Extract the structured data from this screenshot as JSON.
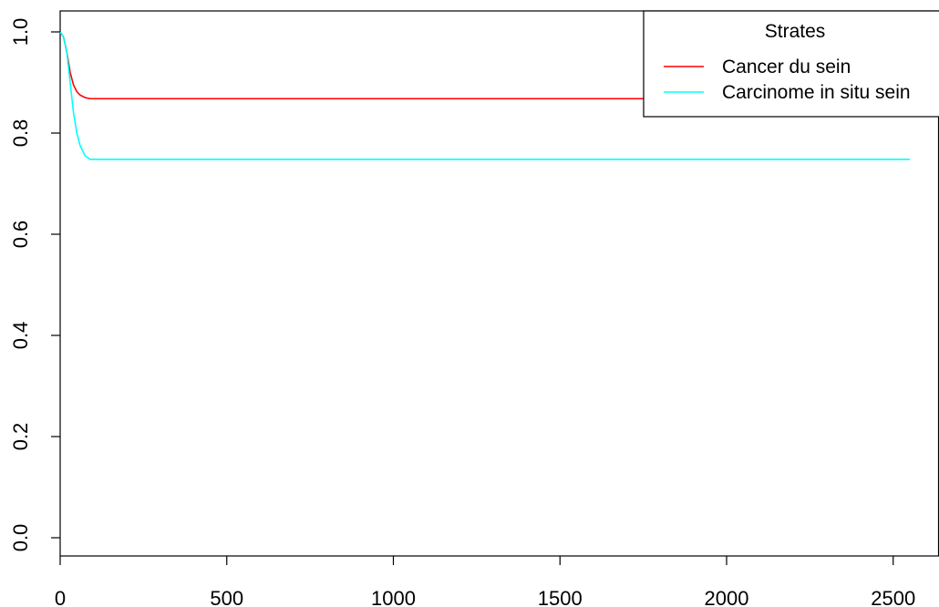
{
  "chart_data": {
    "type": "line",
    "title": "",
    "xlabel": "",
    "ylabel": "",
    "xlim": [
      0,
      2600
    ],
    "ylim": [
      0,
      1.0
    ],
    "x_ticks": [
      0,
      500,
      1000,
      1500,
      2000,
      2500
    ],
    "y_ticks": [
      0.0,
      0.2,
      0.4,
      0.6,
      0.8,
      1.0
    ],
    "x_tick_labels": [
      "0",
      "500",
      "1000",
      "1500",
      "2000",
      "2500"
    ],
    "y_tick_labels": [
      "0.0",
      "0.2",
      "0.4",
      "0.6",
      "0.8",
      "1.0"
    ],
    "grid": false,
    "legend": {
      "title": "Strates",
      "placement": "top-right"
    },
    "series": [
      {
        "name": "Cancer du sein",
        "color": "#ff0000",
        "points": [
          [
            0,
            1.0
          ],
          [
            10,
            0.99
          ],
          [
            20,
            0.96
          ],
          [
            30,
            0.92
          ],
          [
            40,
            0.895
          ],
          [
            50,
            0.882
          ],
          [
            60,
            0.875
          ],
          [
            75,
            0.87
          ],
          [
            90,
            0.868
          ],
          [
            2200,
            0.868
          ]
        ]
      },
      {
        "name": "Carcinome in situ sein",
        "color": "#00ffff",
        "points": [
          [
            0,
            1.0
          ],
          [
            10,
            0.99
          ],
          [
            20,
            0.96
          ],
          [
            30,
            0.9
          ],
          [
            40,
            0.84
          ],
          [
            50,
            0.8
          ],
          [
            60,
            0.775
          ],
          [
            75,
            0.755
          ],
          [
            90,
            0.748
          ],
          [
            2550,
            0.748
          ]
        ]
      }
    ]
  }
}
